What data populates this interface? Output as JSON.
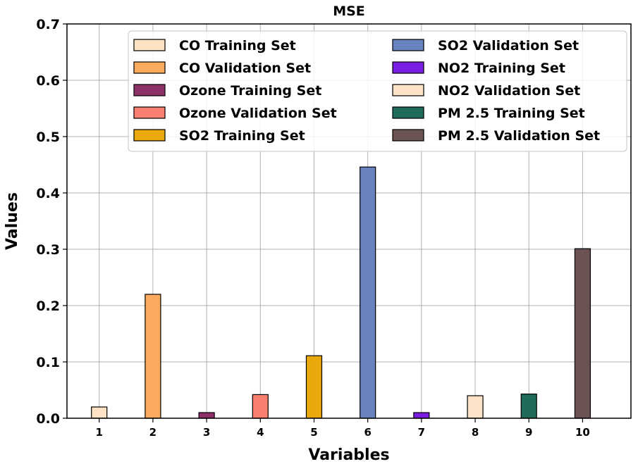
{
  "chart_data": {
    "type": "bar",
    "title": "MSE",
    "xlabel": "Variables",
    "ylabel": "Values",
    "ylim": [
      0,
      0.7
    ],
    "yticks": [
      "0.0",
      "0.1",
      "0.2",
      "0.3",
      "0.4",
      "0.5",
      "0.6",
      "0.7"
    ],
    "grid": true,
    "legend_position": "top-right",
    "categories": [
      "1",
      "2",
      "3",
      "4",
      "5",
      "6",
      "7",
      "8",
      "9",
      "10"
    ],
    "series": [
      {
        "name": "CO Training Set",
        "value": 0.02,
        "color": "#fde3c3"
      },
      {
        "name": "CO Validation Set",
        "value": 0.22,
        "color": "#fbaa5e"
      },
      {
        "name": "Ozone Training Set",
        "value": 0.01,
        "color": "#8e3068"
      },
      {
        "name": "Ozone Validation Set",
        "value": 0.042,
        "color": "#f97f71"
      },
      {
        "name": "SO2 Training Set",
        "value": 0.111,
        "color": "#e9a80b"
      },
      {
        "name": "SO2 Validation Set",
        "value": 0.446,
        "color": "#6782be"
      },
      {
        "name": "NO2 Training Set",
        "value": 0.01,
        "color": "#7a1ee2"
      },
      {
        "name": "NO2 Validation Set",
        "value": 0.04,
        "color": "#fce2c6"
      },
      {
        "name": "PM 2.5 Training Set",
        "value": 0.043,
        "color": "#1f6c5c"
      },
      {
        "name": "PM 2.5 Validation Set",
        "value": 0.301,
        "color": "#6c5353"
      }
    ]
  }
}
